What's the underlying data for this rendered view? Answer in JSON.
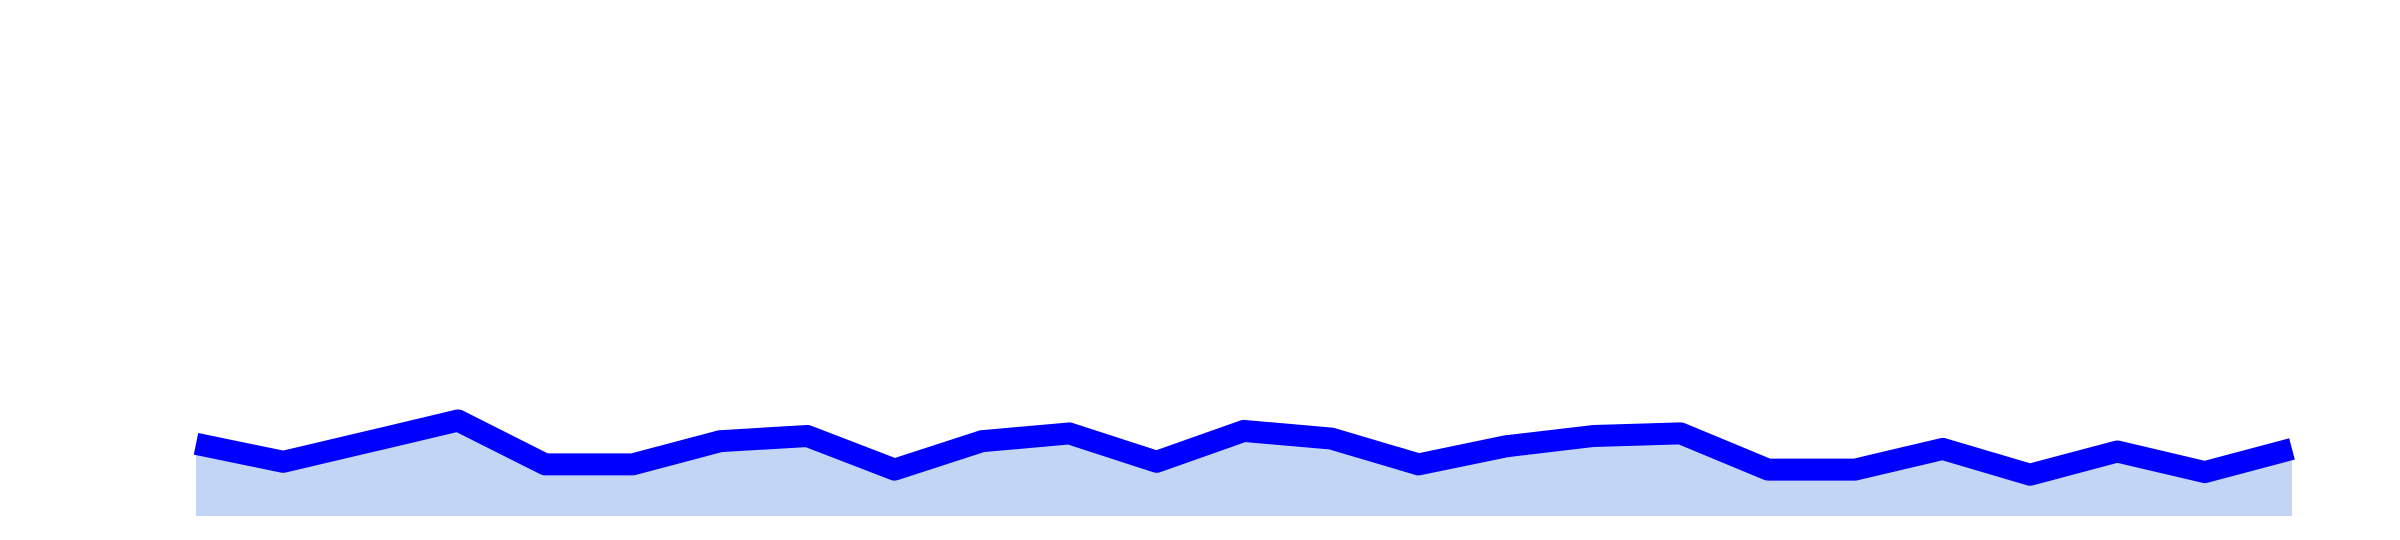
{
  "chart_data": {
    "type": "area",
    "title": "",
    "xlabel": "",
    "ylabel": "",
    "grid": false,
    "legend": "none",
    "x": [
      0,
      1,
      2,
      3,
      4,
      5,
      6,
      7,
      8,
      9,
      10,
      11,
      12,
      13,
      14,
      15,
      16,
      17,
      18,
      19,
      20,
      21,
      22,
      23,
      24
    ],
    "xlim": [
      0,
      24
    ],
    "ylim": [
      0,
      10
    ],
    "series": [
      {
        "values": [
          1.4,
          1.05,
          1.45,
          1.85,
          1.0,
          1.0,
          1.45,
          1.55,
          0.9,
          1.45,
          1.6,
          1.05,
          1.65,
          1.5,
          1.0,
          1.35,
          1.55,
          1.6,
          0.9,
          0.9,
          1.3,
          0.8,
          1.25,
          0.85,
          1.3
        ],
        "line_color": "#0000ff",
        "fill_color": "#c3d5f4"
      }
    ]
  }
}
